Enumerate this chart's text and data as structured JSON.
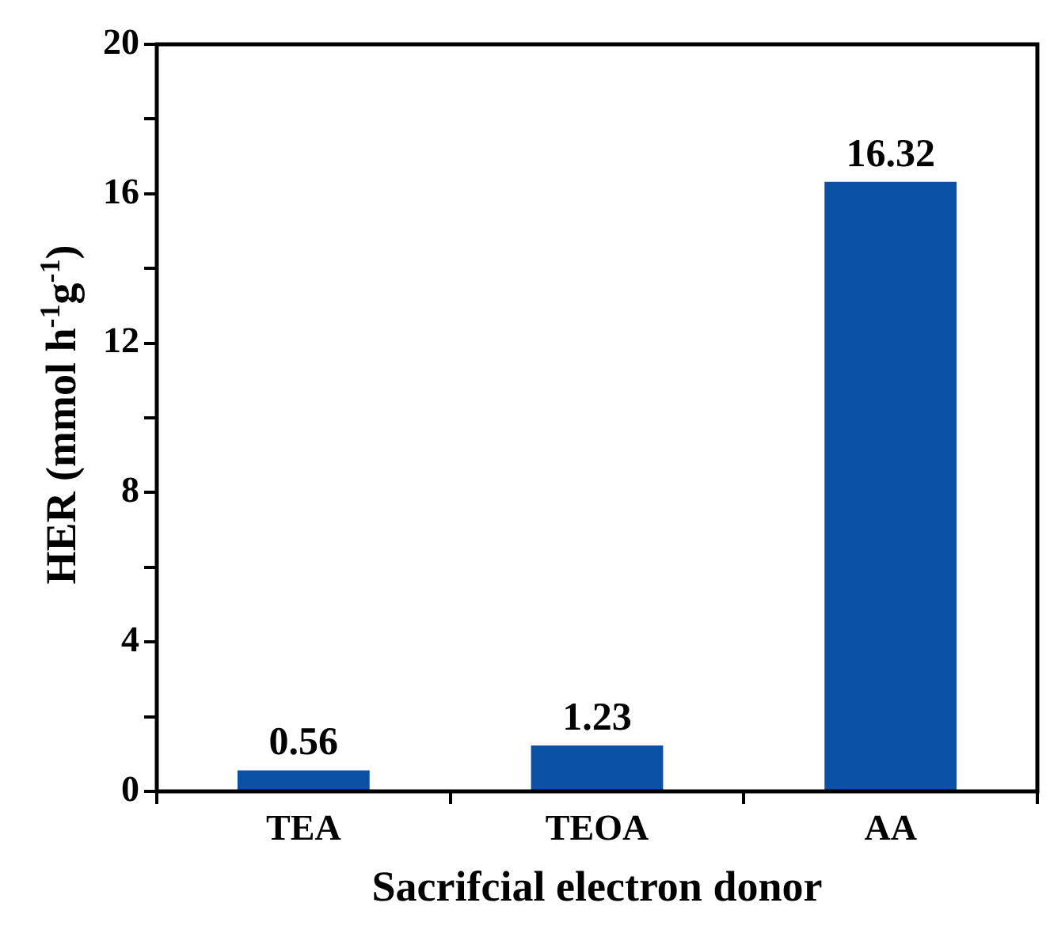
{
  "chart_data": {
    "type": "bar",
    "xlabel": "Sacrifcial electron donor",
    "ylabel": "HER (mmol h$^{-1}$g$^{-1}$)",
    "categories": [
      "TEA",
      "TEOA",
      "AA"
    ],
    "values": [
      0.56,
      1.23,
      16.32
    ],
    "color": "#0a50a4",
    "ylim": [
      0,
      20
    ],
    "yticks": [
      0,
      {
        "value": 2,
        "label": null
      },
      4,
      {
        "value": 6,
        "label": null
      },
      8,
      {
        "value": 10,
        "label": null
      },
      12,
      {
        "value": 14,
        "label": null
      },
      16,
      {
        "value": 18,
        "label": null
      },
      20
    ],
    "grid": false,
    "legend": false,
    "data_labels": true
  }
}
